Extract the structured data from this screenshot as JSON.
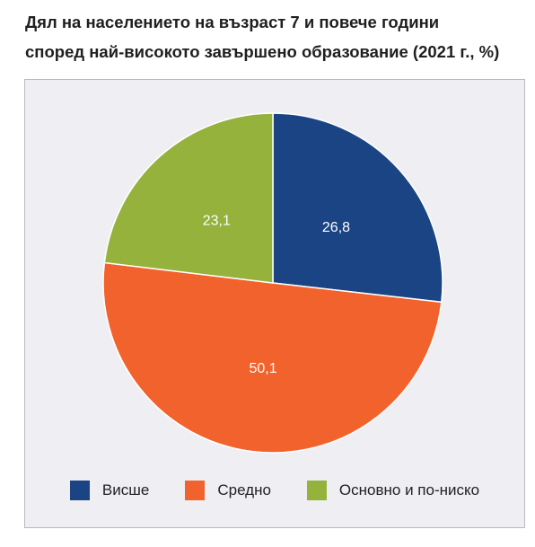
{
  "title_line1": "Дял на населението на възраст 7 и повече години",
  "title_line2": "според най-високото завършено образование (2021 г., %)",
  "chart_data": {
    "type": "pie",
    "title": "Дял на населението на възраст 7 и повече години според най-високото завършено образование (2021 г., %)",
    "slices": [
      {
        "name": "Висше",
        "value": 26.8,
        "label": "26,8",
        "color": "#1b4484"
      },
      {
        "name": "Средно",
        "value": 50.1,
        "label": "50,1",
        "color": "#f2622d"
      },
      {
        "name": "Основно и по-ниско",
        "value": 23.1,
        "label": "23,1",
        "color": "#94b23c"
      }
    ],
    "legend_position": "bottom"
  }
}
